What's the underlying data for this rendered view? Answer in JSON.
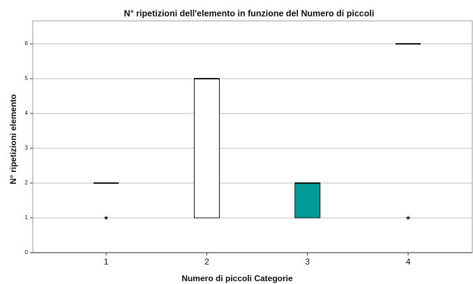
{
  "chart_data": {
    "type": "box",
    "title": "N° ripetizioni dell'elemento in funzione del Numero di piccoli",
    "x_label": "Numero di piccoli  Categorie",
    "y_label": "N° ripetizioni elemento",
    "categories": [
      "1",
      "2",
      "3",
      "4"
    ],
    "boxes": [
      {
        "q1": 2,
        "median": 2,
        "q3": 2,
        "outliers": [
          1
        ],
        "color": "#ffffff"
      },
      {
        "q1": 1,
        "median": 5,
        "q3": 5,
        "outliers": [],
        "color": "#ffffff"
      },
      {
        "q1": 1,
        "median": 2,
        "q3": 2,
        "outliers": [],
        "color": "#009b95"
      },
      {
        "q1": 6,
        "median": 6,
        "q3": 6,
        "outliers": [
          1
        ],
        "color": "#ffffff"
      }
    ],
    "ylim": [
      0,
      6.66
    ],
    "yticks": [
      0,
      1,
      2,
      3,
      4,
      5,
      6
    ],
    "grid": true
  }
}
